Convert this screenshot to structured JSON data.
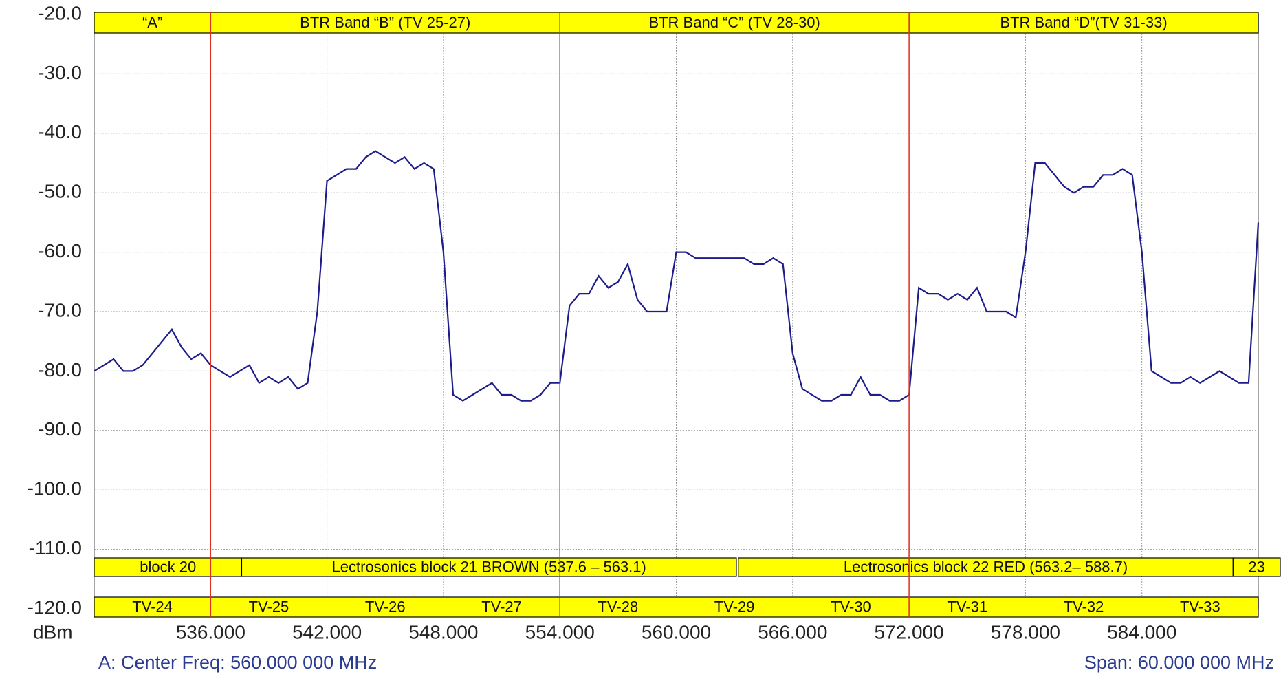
{
  "chart_data": {
    "type": "line",
    "y_label": "dBm",
    "center_label": "A: Center Freq: 560.000 000 MHz",
    "span_label": "Span: 60.000 000 MHz",
    "xlim": [
      530,
      590
    ],
    "ylim": [
      -120,
      -20
    ],
    "xticks": [
      {
        "value": 536,
        "label": "536.000"
      },
      {
        "value": 542,
        "label": "542.000"
      },
      {
        "value": 548,
        "label": "548.000"
      },
      {
        "value": 554,
        "label": "554.000"
      },
      {
        "value": 560,
        "label": "560.000"
      },
      {
        "value": 566,
        "label": "566.000"
      },
      {
        "value": 572,
        "label": "572.000"
      },
      {
        "value": 578,
        "label": "578.000"
      },
      {
        "value": 584,
        "label": "584.000"
      }
    ],
    "yticks": [
      {
        "value": -20,
        "label": "-20.0"
      },
      {
        "value": -30,
        "label": "-30.0"
      },
      {
        "value": -40,
        "label": "-40.0"
      },
      {
        "value": -50,
        "label": "-50.0"
      },
      {
        "value": -60,
        "label": "-60.0"
      },
      {
        "value": -70,
        "label": "-70.0"
      },
      {
        "value": -80,
        "label": "-80.0"
      },
      {
        "value": -90,
        "label": "-90.0"
      },
      {
        "value": -100,
        "label": "-100.0"
      },
      {
        "value": -110,
        "label": "-110.0"
      },
      {
        "value": -120,
        "label": "-120.0"
      }
    ],
    "grid": true,
    "bands": [
      {
        "label": "“A”",
        "range": [
          530,
          536
        ]
      },
      {
        "label": "BTR Band “B” (TV 25-27)",
        "range": [
          536,
          554
        ]
      },
      {
        "label": "BTR Band “C” (TV 28-30)",
        "range": [
          554,
          572
        ]
      },
      {
        "label": "BTR Band “D”(TV 31-33)",
        "range": [
          572,
          590
        ]
      }
    ],
    "band_line_color": "#e03020",
    "blocks": [
      {
        "label": "block 20",
        "range": [
          530,
          537.6
        ]
      },
      {
        "label": "Lectrosonics block 21 BROWN (537.6 – 563.1)",
        "range": [
          537.6,
          563.1
        ]
      },
      {
        "label": "Lectrosonics block 22 RED (563.2– 588.7)",
        "range": [
          563.2,
          588.7
        ]
      },
      {
        "label": "23",
        "range": [
          588.7
        ]
      }
    ],
    "channels": [
      {
        "label": "TV-24",
        "range": [
          530,
          536
        ]
      },
      {
        "label": "TV-25",
        "range": [
          536,
          542
        ]
      },
      {
        "label": "TV-26",
        "range": [
          542,
          548
        ]
      },
      {
        "label": "TV-27",
        "range": [
          548,
          554
        ]
      },
      {
        "label": "TV-28",
        "range": [
          554,
          560
        ]
      },
      {
        "label": "TV-29",
        "range": [
          560,
          566
        ]
      },
      {
        "label": "TV-30",
        "range": [
          566,
          572
        ]
      },
      {
        "label": "TV-31",
        "range": [
          572,
          578
        ]
      },
      {
        "label": "TV-32",
        "range": [
          578,
          584
        ]
      },
      {
        "label": "TV-33",
        "range": [
          584,
          590
        ]
      }
    ],
    "box_color": "#ffff00",
    "series": [
      {
        "color": "#1c1c8a",
        "x": [
          530,
          530.5,
          531,
          531.5,
          532,
          532.5,
          533,
          533.5,
          534,
          534.5,
          535,
          535.5,
          536,
          536.5,
          537,
          537.5,
          538,
          538.5,
          539,
          539.5,
          540,
          540.5,
          541,
          541.5,
          542,
          542.5,
          543,
          543.5,
          544,
          544.5,
          545,
          545.5,
          546,
          546.5,
          547,
          547.5,
          548,
          548.5,
          549,
          549.5,
          550,
          550.5,
          551,
          551.5,
          552,
          552.5,
          553,
          553.5,
          554,
          554.5,
          555,
          555.5,
          556,
          556.5,
          557,
          557.5,
          558,
          558.5,
          559,
          559.5,
          560,
          560.5,
          561,
          561.5,
          562,
          562.5,
          563,
          563.5,
          564,
          564.5,
          565,
          565.5,
          566,
          566.5,
          567,
          567.5,
          568,
          568.5,
          569,
          569.5,
          570,
          570.5,
          571,
          571.5,
          572,
          572.5,
          573,
          573.5,
          574,
          574.5,
          575,
          575.5,
          576,
          576.5,
          577,
          577.5,
          578,
          578.5,
          579,
          579.5,
          580,
          580.5,
          581,
          581.5,
          582,
          582.5,
          583,
          583.5,
          584,
          584.5,
          585,
          585.5,
          586,
          586.5,
          587,
          587.5,
          588,
          588.5,
          589,
          589.5,
          590
        ],
        "values": [
          -80,
          -79,
          -78,
          -80,
          -80,
          -79,
          -77,
          -75,
          -73,
          -76,
          -78,
          -77,
          -79,
          -80,
          -81,
          -80,
          -79,
          -82,
          -81,
          -82,
          -81,
          -83,
          -82,
          -70,
          -48,
          -47,
          -46,
          -46,
          -44,
          -43,
          -44,
          -45,
          -44,
          -46,
          -45,
          -46,
          -60,
          -84,
          -85,
          -84,
          -83,
          -82,
          -84,
          -84,
          -85,
          -85,
          -84,
          -82,
          -82,
          -69,
          -67,
          -67,
          -64,
          -66,
          -65,
          -62,
          -68,
          -70,
          -70,
          -70,
          -60,
          -60,
          -61,
          -61,
          -61,
          -61,
          -61,
          -61,
          -62,
          -62,
          -61,
          -62,
          -77,
          -83,
          -84,
          -85,
          -85,
          -84,
          -84,
          -81,
          -84,
          -84,
          -85,
          -85,
          -84,
          -66,
          -67,
          -67,
          -68,
          -67,
          -68,
          -66,
          -70,
          -70,
          -70,
          -71,
          -60,
          -45,
          -45,
          -47,
          -49,
          -50,
          -49,
          -49,
          -47,
          -47,
          -46,
          -47,
          -60,
          -80,
          -81,
          -82,
          -82,
          -81,
          -82,
          -81,
          -80,
          -81,
          -82,
          -82,
          -55
        ]
      }
    ]
  }
}
